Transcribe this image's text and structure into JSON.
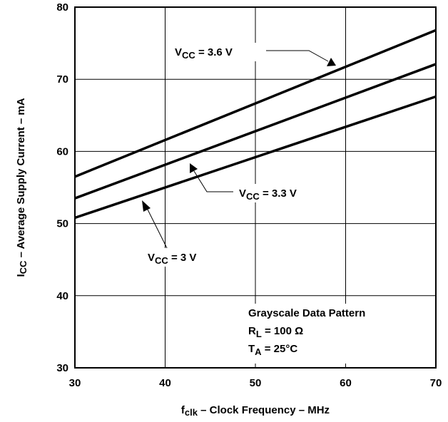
{
  "chart_data": {
    "type": "line",
    "xlabel": {
      "main": "f",
      "sub": "clk",
      "rest": " – Clock Frequency – MHz"
    },
    "ylabel": {
      "main": "I",
      "sub": "CC",
      "rest": " – Average Supply Current – mA"
    },
    "xlim": [
      30,
      70
    ],
    "ylim": [
      30,
      80
    ],
    "xticks": [
      30,
      40,
      50,
      60,
      70
    ],
    "yticks": [
      30,
      40,
      50,
      60,
      70,
      80
    ],
    "grid": true,
    "series": [
      {
        "name": "VCC = 3.6 V",
        "label": {
          "pre": "V",
          "sub": "CC",
          "post": " = 3.6 V"
        },
        "x": [
          30,
          70
        ],
        "y": [
          56.5,
          76.8
        ]
      },
      {
        "name": "VCC = 3.3 V",
        "label": {
          "pre": "V",
          "sub": "CC",
          "post": " = 3.3 V"
        },
        "x": [
          30,
          70
        ],
        "y": [
          53.5,
          72.1
        ]
      },
      {
        "name": "VCC = 3 V",
        "label": {
          "pre": "V",
          "sub": "CC",
          "post": " = 3 V"
        },
        "x": [
          30,
          70
        ],
        "y": [
          50.8,
          67.6
        ]
      }
    ],
    "annotations": {
      "pattern": "Grayscale Data Pattern",
      "rl": {
        "main": "R",
        "sub": "L",
        "rest": " = 100 Ω"
      },
      "ta": {
        "main": "T",
        "sub": "A",
        "rest": " = 25°C"
      }
    }
  }
}
